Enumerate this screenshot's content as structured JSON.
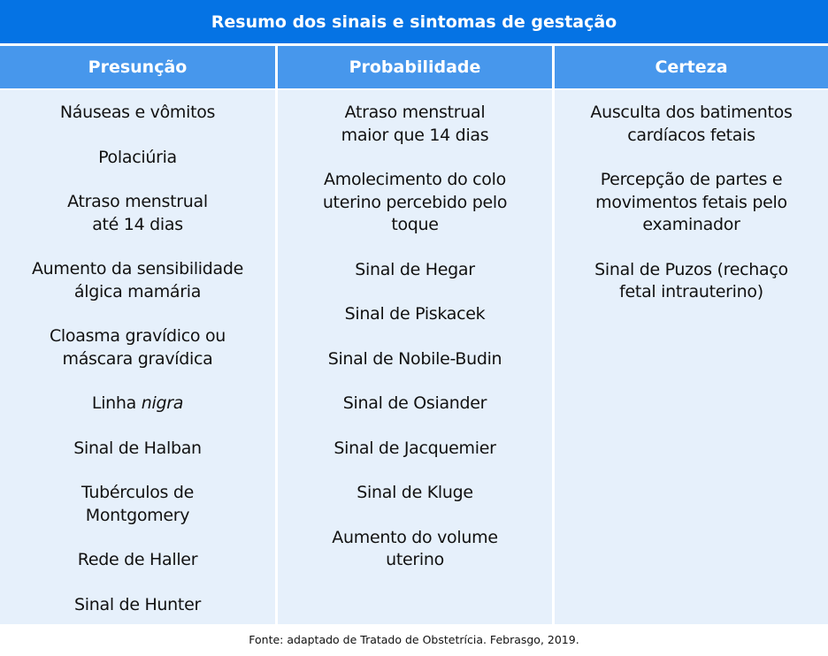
{
  "title": "Resumo dos sinais e sintomas de gestação",
  "columns": [
    {
      "header": "Presunção",
      "items": [
        {
          "text": "Náuseas e vômitos"
        },
        {
          "text": "Polaciúria"
        },
        {
          "text": "Atraso menstrual\naté 14 dias"
        },
        {
          "text": "Aumento da sensibilidade\nálgica mamária"
        },
        {
          "text": "Cloasma gravídico ou\nmáscara gravídica"
        },
        {
          "text": "Linha ",
          "italic": "nigra"
        },
        {
          "text": "Sinal de Halban"
        },
        {
          "text": "Tubérculos de\nMontgomery"
        },
        {
          "text": "Rede de Haller"
        },
        {
          "text": "Sinal de Hunter"
        }
      ]
    },
    {
      "header": "Probabilidade",
      "items": [
        {
          "text": "Atraso menstrual\nmaior que 14 dias"
        },
        {
          "text": "Amolecimento do colo\nuterino percebido pelo\ntoque"
        },
        {
          "text": "Sinal de Hegar"
        },
        {
          "text": "Sinal de Piskacek"
        },
        {
          "text": "Sinal de Nobile-Budin"
        },
        {
          "text": "Sinal de Osiander"
        },
        {
          "text": "Sinal de Jacquemier"
        },
        {
          "text": "Sinal de Kluge"
        },
        {
          "text": "Aumento do volume\nuterino"
        }
      ]
    },
    {
      "header": "Certeza",
      "items": [
        {
          "text": "Ausculta dos batimentos\ncardíacos fetais"
        },
        {
          "text": "Percepção de partes e\nmovimentos fetais pelo\nexaminador"
        },
        {
          "text": "Sinal de Puzos (rechaço\nfetal intrauterino)"
        }
      ]
    }
  ],
  "footer": "Fonte: adaptado de Tratado de Obstetrícia. Febrasgo, 2019.",
  "colors": {
    "title_bg": "#0573E4",
    "header_bg": "#4797EC",
    "cell_bg": "#E6F0FB"
  }
}
